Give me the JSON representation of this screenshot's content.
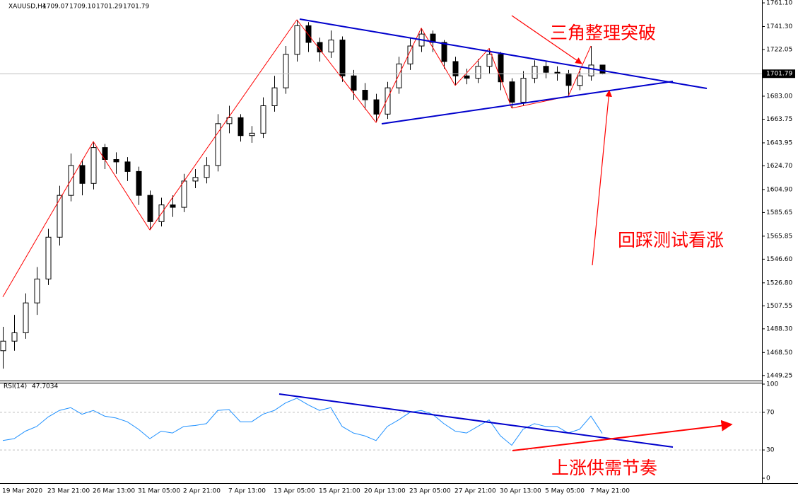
{
  "chart_data": {
    "type": "candlestick",
    "symbol": "XAUUSD,H4",
    "header_quote": [
      "1709.07",
      "1709.10",
      "1701.29",
      "1701.79"
    ],
    "categories": [
      "19 Mar 2020",
      null,
      null,
      null,
      "23 Mar 21:00",
      null,
      null,
      null,
      "26 Mar 13:00",
      null,
      null,
      null,
      "31 Mar 05:00",
      null,
      null,
      null,
      "2 Apr 21:00",
      null,
      null,
      null,
      "7 Apr 13:00",
      null,
      null,
      null,
      "13 Apr 05:00",
      null,
      null,
      null,
      "15 Apr 21:00",
      null,
      null,
      null,
      "20 Apr 13:00",
      null,
      null,
      null,
      "23 Apr 05:00",
      null,
      null,
      null,
      "27 Apr 21:00",
      null,
      null,
      null,
      "30 Apr 13:00",
      null,
      null,
      null,
      "5 May 05:00",
      null,
      null,
      null,
      "7 May 21:00",
      null
    ],
    "open": [
      1470,
      1478,
      1485,
      1510,
      1530,
      1565,
      1600,
      1625,
      1610,
      1640,
      1630,
      1628,
      1620,
      1600,
      1578,
      1592,
      1590,
      1612,
      1615,
      1625,
      1660,
      1665,
      1650,
      1652,
      1675,
      1690,
      1718,
      1742,
      1728,
      1720,
      1730,
      1700,
      1688,
      1680,
      1668,
      1690,
      1710,
      1725,
      1735,
      1728,
      1712,
      1700,
      1698,
      1708,
      1718,
      1695,
      1678,
      1698,
      1708,
      1703,
      1702,
      1692,
      1700,
      1709.07
    ],
    "high": [
      1490,
      1500,
      1518,
      1540,
      1572,
      1608,
      1635,
      1630,
      1645,
      1643,
      1636,
      1632,
      1624,
      1604,
      1598,
      1600,
      1618,
      1622,
      1632,
      1668,
      1675,
      1668,
      1658,
      1682,
      1700,
      1725,
      1747,
      1745,
      1732,
      1738,
      1733,
      1705,
      1694,
      1685,
      1695,
      1716,
      1732,
      1740,
      1738,
      1730,
      1716,
      1706,
      1714,
      1723,
      1720,
      1698,
      1704,
      1713,
      1712,
      1708,
      1705,
      1706,
      1725,
      1709.1
    ],
    "low": [
      1455,
      1470,
      1480,
      1500,
      1525,
      1558,
      1595,
      1600,
      1605,
      1622,
      1618,
      1612,
      1592,
      1571,
      1574,
      1582,
      1586,
      1606,
      1610,
      1620,
      1652,
      1645,
      1644,
      1648,
      1670,
      1685,
      1712,
      1720,
      1712,
      1715,
      1695,
      1680,
      1672,
      1661,
      1664,
      1685,
      1705,
      1720,
      1720,
      1706,
      1692,
      1693,
      1694,
      1702,
      1688,
      1673,
      1675,
      1694,
      1698,
      1696,
      1683,
      1688,
      1696,
      1701.29
    ],
    "close": [
      1478,
      1485,
      1510,
      1530,
      1565,
      1600,
      1625,
      1610,
      1640,
      1630,
      1628,
      1620,
      1600,
      1578,
      1592,
      1590,
      1612,
      1615,
      1625,
      1660,
      1665,
      1650,
      1652,
      1675,
      1690,
      1718,
      1742,
      1728,
      1720,
      1730,
      1700,
      1688,
      1680,
      1668,
      1690,
      1710,
      1725,
      1735,
      1728,
      1712,
      1700,
      1698,
      1708,
      1718,
      1695,
      1678,
      1698,
      1708,
      1703,
      1702,
      1692,
      1700,
      1709.07,
      1701.79
    ],
    "color_up": "#ffffff",
    "color_down": "#000000",
    "ylim": [
      1445,
      1763.5
    ],
    "yticks": [
      {
        "value": 1761.1,
        "label": "1761.10"
      },
      {
        "value": 1741.3,
        "label": "1741.30"
      },
      1722.05,
      {
        "value": 1683,
        "label": "1683.00"
      },
      1663.75,
      1643.95,
      {
        "value": 1624.7,
        "label": "1624.70"
      },
      {
        "value": 1604.9,
        "label": "1604.90"
      },
      1585.65,
      1565.85,
      {
        "value": 1546.6,
        "label": "1546.60"
      },
      {
        "value": 1526.8,
        "label": "1526.80"
      },
      1507.55,
      {
        "value": 1488.3,
        "label": "1488.30"
      },
      {
        "value": 1468.5,
        "label": "1468.50"
      },
      1449.25
    ],
    "grid": false,
    "zigzag": {
      "color": "#ff0000",
      "values": [
        1515,
        null,
        null,
        null,
        null,
        null,
        null,
        null,
        1645,
        null,
        null,
        null,
        null,
        1571,
        null,
        null,
        null,
        null,
        null,
        null,
        null,
        null,
        null,
        null,
        null,
        null,
        1747,
        null,
        null,
        null,
        null,
        null,
        null,
        1661,
        null,
        null,
        null,
        1740,
        null,
        null,
        1692,
        null,
        null,
        1723,
        null,
        1673,
        null,
        null,
        null,
        null,
        1683,
        null,
        1725,
        null
      ]
    },
    "indicator": {
      "name": "RSI(14)",
      "color": "#1e90ff",
      "ylim": [
        0,
        100
      ],
      "yticks": [
        100,
        70,
        30,
        0
      ],
      "values": [
        40,
        42,
        50,
        55,
        65,
        72,
        75,
        68,
        72,
        66,
        64,
        60,
        52,
        42,
        50,
        48,
        55,
        56,
        58,
        72,
        73,
        60,
        60,
        68,
        72,
        80,
        85,
        78,
        72,
        75,
        55,
        48,
        45,
        40,
        55,
        62,
        70,
        72,
        68,
        58,
        50,
        48,
        55,
        62,
        45,
        35,
        52,
        58,
        55,
        55,
        48,
        52,
        66,
        47.7034
      ]
    },
    "annotations": [
      "三角整理突破",
      "回踩测试看涨",
      "上涨供需节奏"
    ]
  }
}
